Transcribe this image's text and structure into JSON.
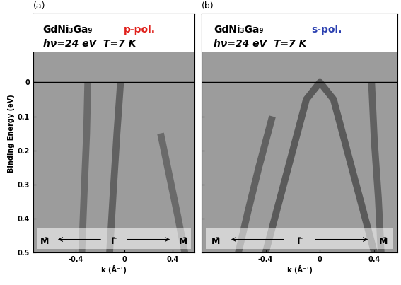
{
  "chart_data": [
    {
      "type": "line",
      "panel_label": "(a)",
      "annotations": [
        {
          "text": "GdNi₃Ga₉"
        },
        {
          "text": "p-pol.",
          "color": "#e0201b"
        },
        {
          "text": "hν=24 eV  T=7 K"
        }
      ],
      "path_labels": [
        "M̄",
        "Γ̄",
        "M̄"
      ],
      "x_label": "k (Å⁻¹)",
      "y_label": "Binding Energy (eV)",
      "xlim": [
        -0.75,
        0.58
      ],
      "ylim": [
        0.5,
        -0.2
      ],
      "xticks": [
        -0.4,
        0,
        0.4
      ],
      "yticks": [
        0,
        0.1,
        0.2,
        0.3,
        0.4,
        0.5
      ],
      "series": [
        {
          "color": "#3a3a3a",
          "x": [
            -0.03,
            -0.06,
            -0.09,
            -0.12
          ],
          "values": [
            0,
            0.15,
            0.32,
            0.5
          ]
        },
        {
          "color": "#4a4a4a",
          "x": [
            -0.3,
            -0.31,
            -0.33,
            -0.35
          ],
          "values": [
            0,
            0.15,
            0.32,
            0.5
          ]
        },
        {
          "color": "#4a4a4a",
          "x": [
            0.3,
            0.37,
            0.44,
            0.5
          ],
          "values": [
            0.15,
            0.27,
            0.39,
            0.5
          ]
        }
      ]
    },
    {
      "type": "line",
      "panel_label": "(b)",
      "annotations": [
        {
          "text": "GdNi₃Ga₉"
        },
        {
          "text": "s-pol.",
          "color": "#2a3fb0"
        },
        {
          "text": "hν=24 eV  T=7 K"
        }
      ],
      "path_labels": [
        "M̄",
        "Γ̄",
        "M̄"
      ],
      "x_label": "k (Å⁻¹)",
      "tick_labels": "x",
      "xlim": [
        -0.87,
        0.57
      ],
      "ylim": [
        0.5,
        -0.2
      ],
      "xticks": [
        -0.4,
        0,
        0.4
      ],
      "yticks": [
        0,
        0.1,
        0.2,
        0.3,
        0.4,
        0.5
      ],
      "series": [
        {
          "color": "#2e2e2e",
          "x": [
            -0.4,
            -0.3,
            -0.2,
            -0.1,
            0,
            0.1,
            0.2,
            0.3,
            0.4
          ],
          "values": [
            0.5,
            0.35,
            0.2,
            0.05,
            0.0,
            0.05,
            0.2,
            0.35,
            0.5
          ]
        },
        {
          "color": "#3a3a3a",
          "x": [
            -0.35,
            -0.45,
            -0.53,
            -0.6
          ],
          "values": [
            0.1,
            0.25,
            0.38,
            0.5
          ]
        },
        {
          "color": "#3a3a3a",
          "x": [
            0.38,
            0.4,
            0.43,
            0.45
          ],
          "values": [
            0,
            0.17,
            0.34,
            0.5
          ]
        }
      ]
    }
  ]
}
